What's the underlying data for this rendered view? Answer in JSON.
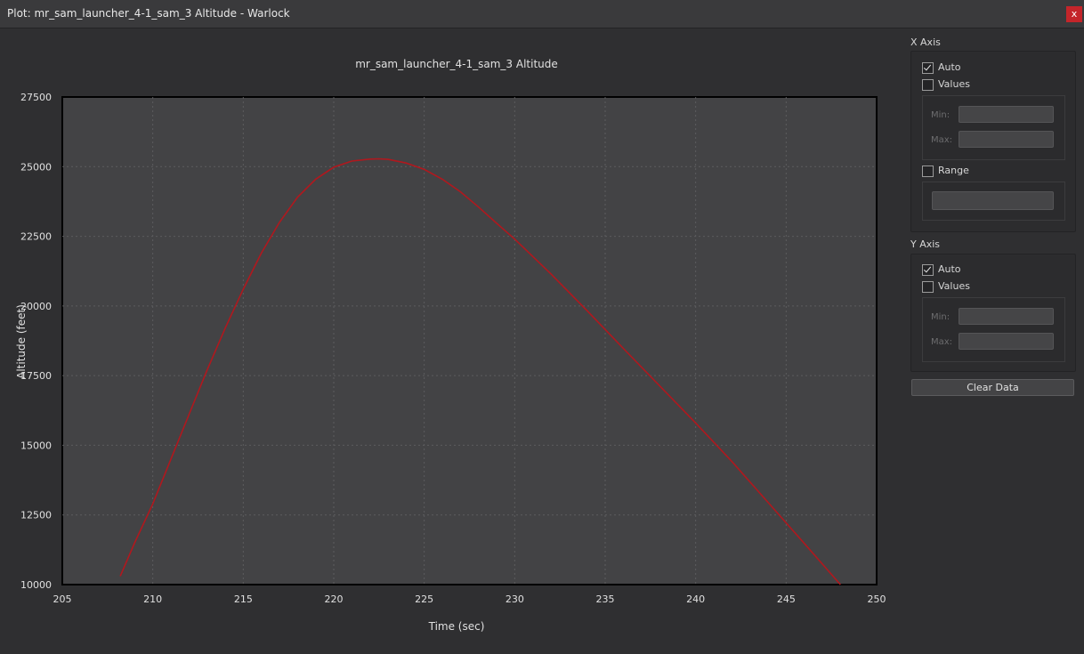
{
  "window": {
    "title": "Plot: mr_sam_launcher_4-1_sam_3 Altitude - Warlock",
    "close_label": "x"
  },
  "panel": {
    "x_axis": {
      "label": "X Axis",
      "auto_label": "Auto",
      "auto_checked": true,
      "values_label": "Values",
      "values_checked": false,
      "min_label": "Min:",
      "max_label": "Max:",
      "min_value": "",
      "max_value": "",
      "range_label": "Range",
      "range_checked": false,
      "range_value": ""
    },
    "y_axis": {
      "label": "Y Axis",
      "auto_label": "Auto",
      "auto_checked": true,
      "values_label": "Values",
      "values_checked": false,
      "min_label": "Min:",
      "max_label": "Max:",
      "min_value": "",
      "max_value": ""
    },
    "clear_button": "Clear Data"
  },
  "chart_data": {
    "type": "line",
    "title": "mr_sam_launcher_4-1_sam_3 Altitude",
    "xlabel": "Time (sec)",
    "ylabel": "Altitude (feet)",
    "xlim": [
      205,
      250
    ],
    "ylim": [
      10000,
      27500
    ],
    "xticks": [
      205,
      210,
      215,
      220,
      225,
      230,
      235,
      240,
      245,
      250
    ],
    "yticks": [
      10000,
      12500,
      15000,
      17500,
      20000,
      22500,
      25000,
      27500
    ],
    "grid": true,
    "colors": {
      "line": "#b0181e",
      "plot_bg": "#434345",
      "grid": "#5c5c5e",
      "frame": "#000000"
    },
    "series": [
      {
        "x": [
          208.2,
          209,
          210,
          211,
          212,
          213,
          214,
          215,
          216,
          217,
          218,
          219,
          220,
          221,
          222,
          222.5,
          223,
          224,
          225,
          226,
          227,
          228,
          229,
          230,
          232,
          234,
          236,
          238,
          240,
          242,
          244,
          246,
          248
        ],
        "values": [
          10300,
          11500,
          12900,
          14500,
          16100,
          17700,
          19200,
          20600,
          21900,
          23000,
          23900,
          24550,
          24980,
          25200,
          25270,
          25280,
          25260,
          25130,
          24900,
          24550,
          24100,
          23550,
          22970,
          22400,
          21150,
          19830,
          18480,
          17140,
          15800,
          14420,
          12950,
          11480,
          10000
        ]
      }
    ]
  }
}
